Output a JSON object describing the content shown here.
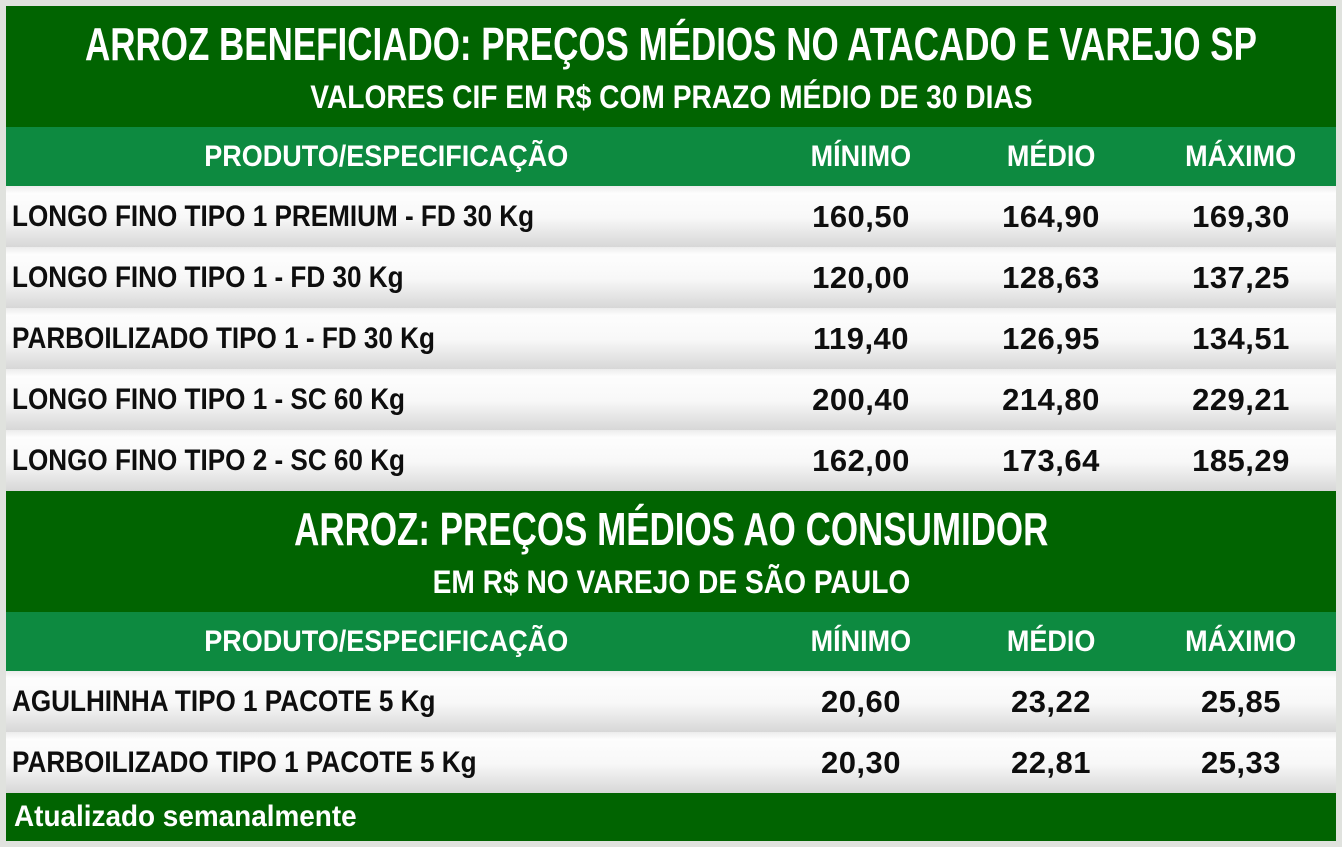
{
  "colors": {
    "dark_green": "#016401",
    "medium_green": "#0d8a40",
    "frame_gray": "#e0e2de",
    "row_gradient_bottom": "#d7d7d7",
    "text_dark": "#0e0e0e",
    "text_white": "#ffffff"
  },
  "sections": [
    {
      "title": "ARROZ BENEFICIADO: PREÇOS MÉDIOS NO ATACADO E VAREJO SP",
      "subtitle": "VALORES CIF EM R$ COM PRAZO MÉDIO DE 30 DIAS",
      "columns": {
        "product": "PRODUTO/ESPECIFICAÇÃO",
        "min": "MÍNIMO",
        "avg": "MÉDIO",
        "max": "MÁXIMO"
      },
      "rows": [
        {
          "product": "LONGO FINO TIPO 1 PREMIUM - FD 30 Kg",
          "min": "160,50",
          "avg": "164,90",
          "max": "169,30"
        },
        {
          "product": "LONGO FINO TIPO 1 - FD 30 Kg",
          "min": "120,00",
          "avg": "128,63",
          "max": "137,25"
        },
        {
          "product": "PARBOILIZADO TIPO 1 - FD 30 Kg",
          "min": "119,40",
          "avg": "126,95",
          "max": "134,51"
        },
        {
          "product": "LONGO FINO TIPO 1 - SC 60 Kg",
          "min": "200,40",
          "avg": "214,80",
          "max": "229,21"
        },
        {
          "product": "LONGO FINO TIPO 2 - SC 60 Kg",
          "min": "162,00",
          "avg": "173,64",
          "max": "185,29"
        }
      ]
    },
    {
      "title": "ARROZ: PREÇOS MÉDIOS AO CONSUMIDOR",
      "subtitle": "EM R$ NO VAREJO DE SÃO PAULO",
      "columns": {
        "product": "PRODUTO/ESPECIFICAÇÃO",
        "min": "MÍNIMO",
        "avg": "MÉDIO",
        "max": "MÁXIMO"
      },
      "rows": [
        {
          "product": "AGULHINHA TIPO 1 PACOTE 5 Kg",
          "min": "20,60",
          "avg": "23,22",
          "max": "25,85"
        },
        {
          "product": "PARBOILIZADO TIPO 1 PACOTE 5 Kg",
          "min": "20,30",
          "avg": "22,81",
          "max": "25,33"
        }
      ]
    }
  ],
  "footer": {
    "note": "Atualizado semanalmente"
  },
  "chart_data": [
    {
      "type": "table",
      "title": "ARROZ BENEFICIADO: PREÇOS MÉDIOS NO ATACADO E VAREJO SP",
      "subtitle": "VALORES CIF EM R$ COM PRAZO MÉDIO DE 30 DIAS",
      "columns": [
        "PRODUTO/ESPECIFICAÇÃO",
        "MÍNIMO",
        "MÉDIO",
        "MÁXIMO"
      ],
      "rows": [
        [
          "LONGO FINO TIPO 1 PREMIUM - FD 30 Kg",
          160.5,
          164.9,
          169.3
        ],
        [
          "LONGO FINO TIPO 1 - FD 30 Kg",
          120.0,
          128.63,
          137.25
        ],
        [
          "PARBOILIZADO TIPO 1 - FD 30 Kg",
          119.4,
          126.95,
          134.51
        ],
        [
          "LONGO FINO TIPO 1 - SC 60 Kg",
          200.4,
          214.8,
          229.21
        ],
        [
          "LONGO FINO TIPO 2 - SC 60 Kg",
          162.0,
          173.64,
          185.29
        ]
      ]
    },
    {
      "type": "table",
      "title": "ARROZ: PREÇOS MÉDIOS AO CONSUMIDOR",
      "subtitle": "EM R$ NO VAREJO DE SÃO PAULO",
      "columns": [
        "PRODUTO/ESPECIFICAÇÃO",
        "MÍNIMO",
        "MÉDIO",
        "MÁXIMO"
      ],
      "rows": [
        [
          "AGULHINHA TIPO 1 PACOTE 5 Kg",
          20.6,
          23.22,
          25.85
        ],
        [
          "PARBOILIZADO TIPO 1 PACOTE 5 Kg",
          20.3,
          22.81,
          25.33
        ]
      ]
    }
  ]
}
